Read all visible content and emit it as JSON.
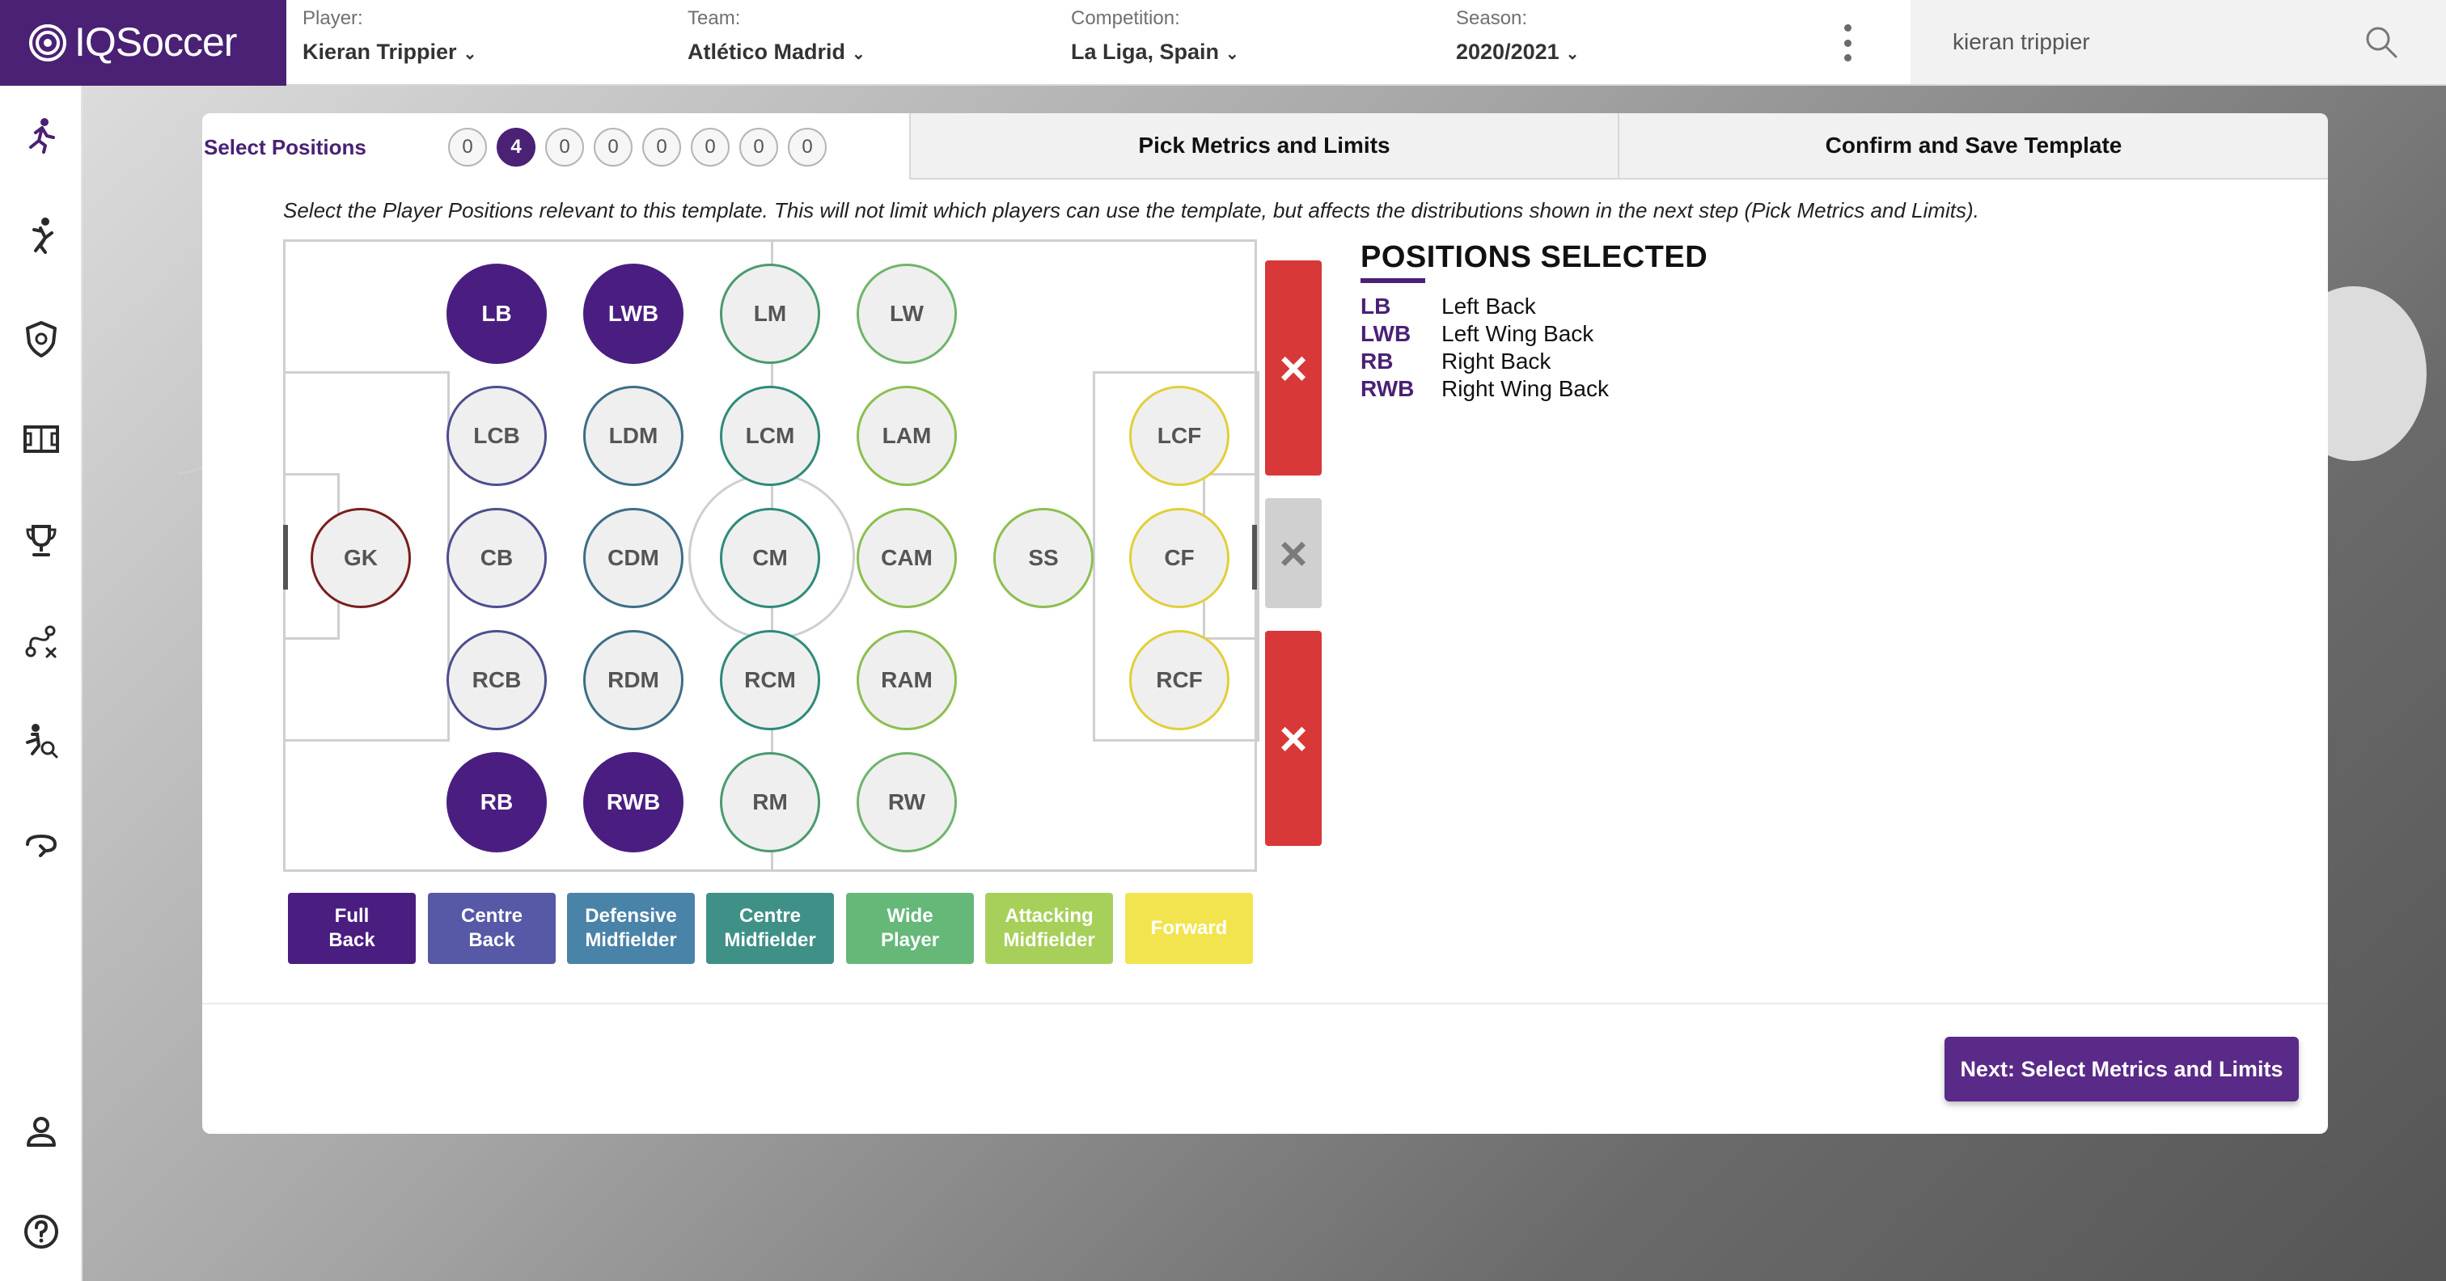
{
  "app": {
    "name": "IQSoccer"
  },
  "header": {
    "player": {
      "label": "Player:",
      "value": "Kieran Trippier"
    },
    "team": {
      "label": "Team:",
      "value": "Atlético Madrid"
    },
    "competition": {
      "label": "Competition:",
      "value": "La Liga, Spain"
    },
    "season": {
      "label": "Season:",
      "value": "2020/2021"
    },
    "chevron": "⌄",
    "search_value": "kieran trippier"
  },
  "sidebar": {
    "icons": [
      "runner-icon",
      "player-kick-icon",
      "club-badge-icon",
      "pitch-icon",
      "trophy-icon",
      "tactics-icon",
      "player-search-icon",
      "transfer-icon",
      "user-icon",
      "help-icon"
    ]
  },
  "tabs": {
    "select_positions": "Select Positions",
    "pick_metrics": "Pick Metrics and Limits",
    "confirm_save": "Confirm and Save Template",
    "counters": [
      "0",
      "4",
      "0",
      "0",
      "0",
      "0",
      "0",
      "0"
    ],
    "active_counter_index": 1
  },
  "instruction": "Select the Player Positions relevant to this template. This will not limit which players can use the template, but affects the distributions shown in the next step (Pick Metrics and Limits).",
  "positions": [
    {
      "code": "LB",
      "selected": true,
      "color": "#4a1e80"
    },
    {
      "code": "LWB",
      "selected": true,
      "color": "#4a1e80"
    },
    {
      "code": "LM",
      "selected": false,
      "color": "#4a9a6e"
    },
    {
      "code": "LW",
      "selected": false,
      "color": "#6fb56a"
    },
    {
      "code": "LCB",
      "selected": false,
      "color": "#4d4d8f"
    },
    {
      "code": "LDM",
      "selected": false,
      "color": "#3d6e87"
    },
    {
      "code": "LCM",
      "selected": false,
      "color": "#2f8a7a"
    },
    {
      "code": "LAM",
      "selected": false,
      "color": "#8cbf4f"
    },
    {
      "code": "LCF",
      "selected": false,
      "color": "#e2cf3a"
    },
    {
      "code": "GK",
      "selected": false,
      "color": "#7a1e1e"
    },
    {
      "code": "CB",
      "selected": false,
      "color": "#4d4d8f"
    },
    {
      "code": "CDM",
      "selected": false,
      "color": "#3d6e87"
    },
    {
      "code": "CM",
      "selected": false,
      "color": "#2f8a7a"
    },
    {
      "code": "CAM",
      "selected": false,
      "color": "#8cbf4f"
    },
    {
      "code": "SS",
      "selected": false,
      "color": "#8cbf4f"
    },
    {
      "code": "CF",
      "selected": false,
      "color": "#e2cf3a"
    },
    {
      "code": "RCB",
      "selected": false,
      "color": "#4d4d8f"
    },
    {
      "code": "RDM",
      "selected": false,
      "color": "#3d6e87"
    },
    {
      "code": "RCM",
      "selected": false,
      "color": "#2f8a7a"
    },
    {
      "code": "RAM",
      "selected": false,
      "color": "#8cbf4f"
    },
    {
      "code": "RCF",
      "selected": false,
      "color": "#e2cf3a"
    },
    {
      "code": "RB",
      "selected": true,
      "color": "#4a1e80"
    },
    {
      "code": "RWB",
      "selected": true,
      "color": "#4a1e80"
    },
    {
      "code": "RM",
      "selected": false,
      "color": "#4a9a6e"
    },
    {
      "code": "RW",
      "selected": false,
      "color": "#6fb56a"
    }
  ],
  "x_buttons": [
    "×",
    "×",
    "×"
  ],
  "legend": [
    {
      "line1": "Full",
      "line2": "Back",
      "color": "#4a1e80"
    },
    {
      "line1": "Centre",
      "line2": "Back",
      "color": "#5758a6"
    },
    {
      "line1": "Defensive",
      "line2": "Midfielder",
      "color": "#4a83a8"
    },
    {
      "line1": "Centre",
      "line2": "Midfielder",
      "color": "#3f9188"
    },
    {
      "line1": "Wide",
      "line2": "Player",
      "color": "#66b879"
    },
    {
      "line1": "Attacking",
      "line2": "Midfielder",
      "color": "#a7d05a"
    },
    {
      "line1": "Forward",
      "line2": "",
      "color": "#f1e44e"
    }
  ],
  "selected_panel": {
    "title": "POSITIONS SELECTED",
    "items": [
      {
        "code": "LB",
        "name": "Left Back"
      },
      {
        "code": "LWB",
        "name": "Left Wing Back"
      },
      {
        "code": "RB",
        "name": "Right Back"
      },
      {
        "code": "RWB",
        "name": "Right Wing Back"
      }
    ]
  },
  "next_button": "Next: Select Metrics and Limits",
  "colors": {
    "brand": "#4a2175",
    "danger": "#d83838"
  }
}
